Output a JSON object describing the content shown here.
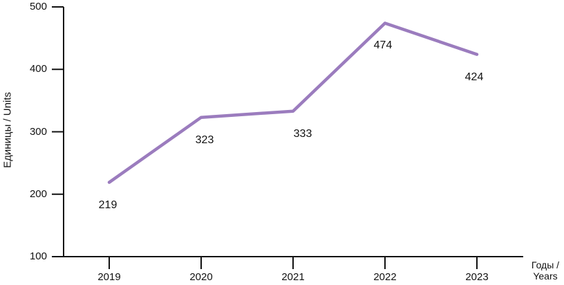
{
  "chart_data": {
    "type": "line",
    "title": "",
    "categories": [
      "2019",
      "2020",
      "2021",
      "2022",
      "2023"
    ],
    "values": [
      219,
      323,
      333,
      474,
      424
    ],
    "data_labels": [
      "219",
      "323",
      "333",
      "474",
      "424"
    ],
    "yticks": [
      "100",
      "200",
      "300",
      "400",
      "500"
    ],
    "ytick_values": [
      100,
      200,
      300,
      400,
      500
    ],
    "ylim": [
      100,
      500
    ],
    "xlabel": "Годы / Years",
    "xlabel_lines": [
      "Годы /",
      "Years"
    ],
    "ylabel": "Единицы / Units",
    "grid": "off",
    "legend": "none",
    "line_color": "#9b7cbe",
    "axis_color": "#111111"
  }
}
